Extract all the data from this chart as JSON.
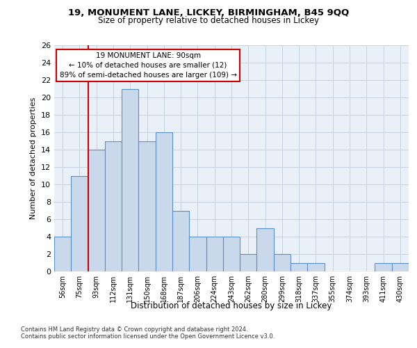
{
  "title1": "19, MONUMENT LANE, LICKEY, BIRMINGHAM, B45 9QQ",
  "title2": "Size of property relative to detached houses in Lickey",
  "xlabel": "Distribution of detached houses by size in Lickey",
  "ylabel": "Number of detached properties",
  "categories": [
    "56sqm",
    "75sqm",
    "93sqm",
    "112sqm",
    "131sqm",
    "150sqm",
    "168sqm",
    "187sqm",
    "206sqm",
    "224sqm",
    "243sqm",
    "262sqm",
    "280sqm",
    "299sqm",
    "318sqm",
    "337sqm",
    "355sqm",
    "374sqm",
    "393sqm",
    "411sqm",
    "430sqm"
  ],
  "values": [
    4,
    11,
    14,
    15,
    21,
    15,
    16,
    7,
    4,
    4,
    4,
    2,
    5,
    2,
    1,
    1,
    0,
    0,
    0,
    1,
    1
  ],
  "bar_color": "#c9d9eb",
  "bar_edge_color": "#5b8fc9",
  "vline_color": "#cc0000",
  "vline_x": 1.5,
  "annotation_title": "19 MONUMENT LANE: 90sqm",
  "annotation_line1": "← 10% of detached houses are smaller (12)",
  "annotation_line2": "89% of semi-detached houses are larger (109) →",
  "annotation_box_facecolor": "#ffffff",
  "annotation_box_edgecolor": "#cc0000",
  "ylim": [
    0,
    26
  ],
  "yticks": [
    0,
    2,
    4,
    6,
    8,
    10,
    12,
    14,
    16,
    18,
    20,
    22,
    24,
    26
  ],
  "grid_color": "#c8d4e3",
  "footnote1": "Contains HM Land Registry data © Crown copyright and database right 2024.",
  "footnote2": "Contains public sector information licensed under the Open Government Licence v3.0.",
  "bg_color": "#eaf0f8",
  "fig_bg_color": "#ffffff"
}
